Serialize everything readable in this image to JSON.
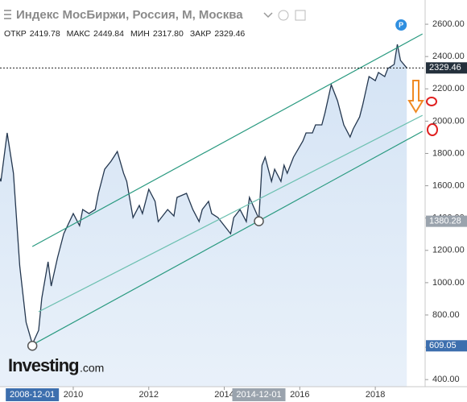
{
  "header": {
    "title": "Индекс МосБиржи, Россия, М, Москва",
    "ohlc": [
      {
        "key": "ОТКР",
        "value": "2419.78"
      },
      {
        "key": "МАКС",
        "value": "2449.84"
      },
      {
        "key": "МИН",
        "value": "2317.80"
      },
      {
        "key": "ЗАКР",
        "value": "2329.46"
      }
    ],
    "badge": "P",
    "logo": "Investing",
    "logo_suffix": ".com"
  },
  "chart_data": {
    "type": "area-line",
    "x": [
      "2008-01",
      "2008-02",
      "2008-04",
      "2008-06",
      "2008-08",
      "2008-10",
      "2008-12",
      "2009-02",
      "2009-03",
      "2009-05",
      "2009-06",
      "2009-08",
      "2009-10",
      "2010-01",
      "2010-03",
      "2010-04",
      "2010-06",
      "2010-08",
      "2010-09",
      "2010-11",
      "2011-01",
      "2011-03",
      "2011-05",
      "2011-06",
      "2011-08",
      "2011-10",
      "2011-11",
      "2012-01",
      "2012-03",
      "2012-04",
      "2012-06",
      "2012-07",
      "2012-09",
      "2012-10",
      "2013-01",
      "2013-03",
      "2013-05",
      "2013-06",
      "2013-08",
      "2013-09",
      "2013-11",
      "2014-03",
      "2014-04",
      "2014-06",
      "2014-08",
      "2014-09",
      "2014-12",
      "2015-01",
      "2015-02",
      "2015-04",
      "2015-05",
      "2015-07",
      "2015-08",
      "2015-09",
      "2015-11",
      "2016-02",
      "2016-03",
      "2016-05",
      "2016-06",
      "2016-08",
      "2016-09",
      "2016-11",
      "2017-01",
      "2017-03",
      "2017-05",
      "2017-06",
      "2017-08",
      "2017-09",
      "2017-11",
      "2018-01",
      "2018-02",
      "2018-04",
      "2018-05",
      "2018-07",
      "2018-08",
      "2018-09",
      "2018-11"
    ],
    "series": [
      {
        "color": "#24374f",
        "values": [
          1677,
          1627,
          1927,
          1677,
          1104,
          755,
          620,
          705,
          904,
          1129,
          979,
          1154,
          1303,
          1428,
          1353,
          1453,
          1428,
          1453,
          1553,
          1702,
          1752,
          1812,
          1677,
          1627,
          1403,
          1478,
          1428,
          1578,
          1503,
          1378,
          1428,
          1453,
          1413,
          1528,
          1553,
          1453,
          1378,
          1453,
          1503,
          1428,
          1403,
          1303,
          1403,
          1453,
          1378,
          1528,
          1396,
          1727,
          1777,
          1627,
          1702,
          1627,
          1727,
          1677,
          1777,
          1877,
          1927,
          1927,
          1977,
          1977,
          2051,
          2226,
          2126,
          1977,
          1902,
          1952,
          2026,
          2101,
          2276,
          2251,
          2301,
          2276,
          2326,
          2351,
          2475,
          2376,
          2329.46
        ]
      }
    ],
    "trendlines": [
      {
        "color": "#2a9a80",
        "x": [
          "2008-12",
          "2019-04"
        ],
        "values": [
          1224,
          2540
        ]
      },
      {
        "color": "#6cc0b0",
        "x": [
          "2009-02",
          "2019-04"
        ],
        "values": [
          820,
          2036
        ]
      },
      {
        "color": "#2a9a80",
        "x": [
          "2008-12",
          "2019-04"
        ],
        "values": [
          615,
          1937
        ]
      }
    ],
    "xlim": [
      2008.06,
      2019.32
    ],
    "xticks": [
      2010,
      2012,
      2014,
      2016,
      2018
    ],
    "ylim": [
      356,
      2750
    ],
    "yticks": [
      {
        "value": 400,
        "label": "400.00"
      },
      {
        "value": 600,
        "label": "600.00"
      },
      {
        "value": 800,
        "label": "800.00"
      },
      {
        "value": 1000,
        "label": "1000.00"
      },
      {
        "value": 1200,
        "label": "1200.00"
      },
      {
        "value": 1400,
        "label": "1400.00"
      },
      {
        "value": 1600,
        "label": "1600.00"
      },
      {
        "value": 1800,
        "label": "1800.00"
      },
      {
        "value": 2000,
        "label": "2000.00"
      },
      {
        "value": 2200,
        "label": "2200.00"
      },
      {
        "value": 2400,
        "label": "2400.00"
      },
      {
        "value": 2600,
        "label": "2600.00"
      }
    ],
    "last_price": 2329.46,
    "markers": [
      {
        "date": "2008-12-01",
        "price": 609.05,
        "color": "#3d6fae"
      },
      {
        "date": "2014-12-01",
        "price": 1380.28,
        "color": "#9aa3ad"
      }
    ],
    "grid": false
  }
}
